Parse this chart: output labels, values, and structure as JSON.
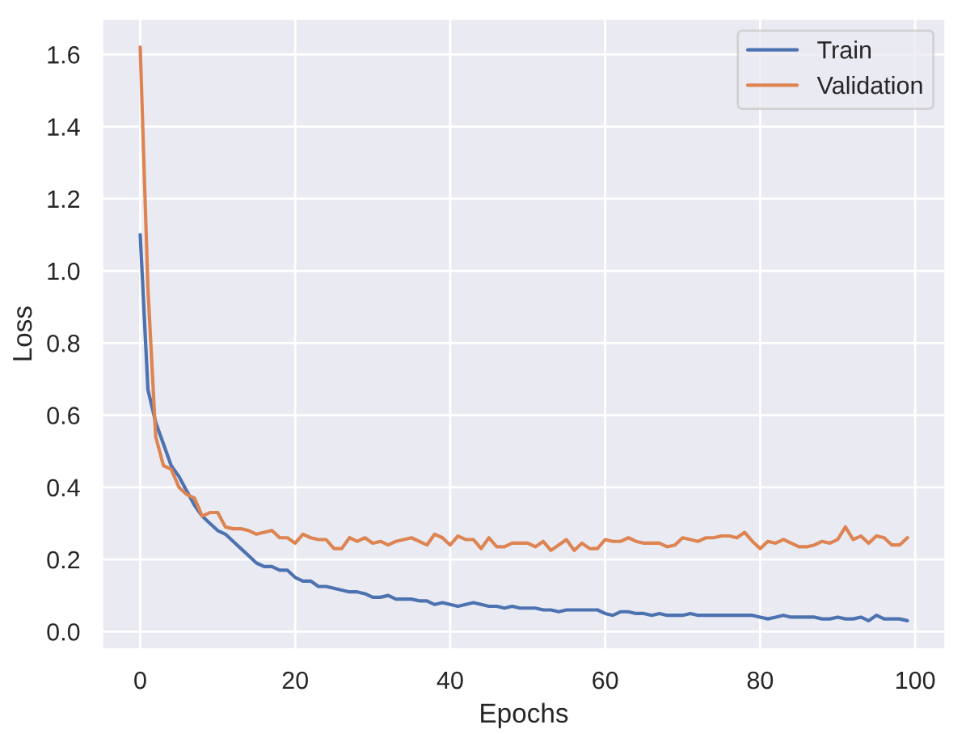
{
  "chart_data": {
    "type": "line",
    "xlabel": "Epochs",
    "ylabel": "Loss",
    "x": [
      0,
      1,
      2,
      3,
      4,
      5,
      6,
      7,
      8,
      9,
      10,
      11,
      12,
      13,
      14,
      15,
      16,
      17,
      18,
      19,
      20,
      21,
      22,
      23,
      24,
      25,
      26,
      27,
      28,
      29,
      30,
      31,
      32,
      33,
      34,
      35,
      36,
      37,
      38,
      39,
      40,
      41,
      42,
      43,
      44,
      45,
      46,
      47,
      48,
      49,
      50,
      51,
      52,
      53,
      54,
      55,
      56,
      57,
      58,
      59,
      60,
      61,
      62,
      63,
      64,
      65,
      66,
      67,
      68,
      69,
      70,
      71,
      72,
      73,
      74,
      75,
      76,
      77,
      78,
      79,
      80,
      81,
      82,
      83,
      84,
      85,
      86,
      87,
      88,
      89,
      90,
      91,
      92,
      93,
      94,
      95,
      96,
      97,
      98,
      99
    ],
    "series": [
      {
        "name": "Train",
        "color": "#4c72b0",
        "values": [
          1.1,
          0.67,
          0.58,
          0.52,
          0.46,
          0.43,
          0.39,
          0.35,
          0.32,
          0.3,
          0.28,
          0.27,
          0.25,
          0.23,
          0.21,
          0.19,
          0.18,
          0.18,
          0.17,
          0.17,
          0.15,
          0.14,
          0.14,
          0.125,
          0.125,
          0.12,
          0.115,
          0.11,
          0.11,
          0.105,
          0.095,
          0.095,
          0.1,
          0.09,
          0.09,
          0.09,
          0.085,
          0.085,
          0.075,
          0.08,
          0.075,
          0.07,
          0.075,
          0.08,
          0.075,
          0.07,
          0.07,
          0.065,
          0.07,
          0.065,
          0.065,
          0.065,
          0.06,
          0.06,
          0.055,
          0.06,
          0.06,
          0.06,
          0.06,
          0.06,
          0.05,
          0.045,
          0.055,
          0.055,
          0.05,
          0.05,
          0.045,
          0.05,
          0.045,
          0.045,
          0.045,
          0.05,
          0.045,
          0.045,
          0.045,
          0.045,
          0.045,
          0.045,
          0.045,
          0.045,
          0.04,
          0.035,
          0.04,
          0.045,
          0.04,
          0.04,
          0.04,
          0.04,
          0.035,
          0.035,
          0.04,
          0.035,
          0.035,
          0.04,
          0.03,
          0.045,
          0.035,
          0.035,
          0.035,
          0.03
        ]
      },
      {
        "name": "Validation",
        "color": "#dd8452",
        "values": [
          1.62,
          0.95,
          0.54,
          0.46,
          0.45,
          0.4,
          0.38,
          0.37,
          0.32,
          0.33,
          0.33,
          0.29,
          0.285,
          0.285,
          0.28,
          0.27,
          0.275,
          0.28,
          0.26,
          0.26,
          0.245,
          0.27,
          0.26,
          0.255,
          0.255,
          0.23,
          0.23,
          0.26,
          0.25,
          0.26,
          0.245,
          0.25,
          0.24,
          0.25,
          0.255,
          0.26,
          0.25,
          0.24,
          0.27,
          0.26,
          0.24,
          0.265,
          0.255,
          0.255,
          0.23,
          0.26,
          0.235,
          0.235,
          0.245,
          0.245,
          0.245,
          0.235,
          0.25,
          0.225,
          0.24,
          0.255,
          0.225,
          0.245,
          0.23,
          0.23,
          0.255,
          0.25,
          0.25,
          0.26,
          0.25,
          0.245,
          0.245,
          0.245,
          0.235,
          0.24,
          0.26,
          0.255,
          0.25,
          0.26,
          0.26,
          0.265,
          0.265,
          0.26,
          0.275,
          0.25,
          0.23,
          0.25,
          0.245,
          0.255,
          0.245,
          0.235,
          0.235,
          0.24,
          0.25,
          0.245,
          0.255,
          0.29,
          0.255,
          0.265,
          0.245,
          0.265,
          0.26,
          0.24,
          0.24,
          0.26
        ]
      }
    ],
    "xlim": [
      -4.95,
      103.95
    ],
    "xticks": [
      0,
      20,
      40,
      60,
      80,
      100
    ],
    "ylim": [
      -0.05,
      1.7
    ],
    "yticks": [
      {
        "value": 0,
        "label": "0.0"
      },
      {
        "value": 0.2,
        "label": "0.2"
      },
      {
        "value": 0.4,
        "label": "0.4"
      },
      {
        "value": 0.6,
        "label": "0.6"
      },
      {
        "value": 0.8,
        "label": "0.8"
      },
      {
        "value": 1.0,
        "label": "1.0"
      },
      {
        "value": 1.2,
        "label": "1.2"
      },
      {
        "value": 1.4,
        "label": "1.4"
      },
      {
        "value": 1.6,
        "label": "1.6"
      }
    ],
    "grid": true,
    "legend": "top right"
  }
}
